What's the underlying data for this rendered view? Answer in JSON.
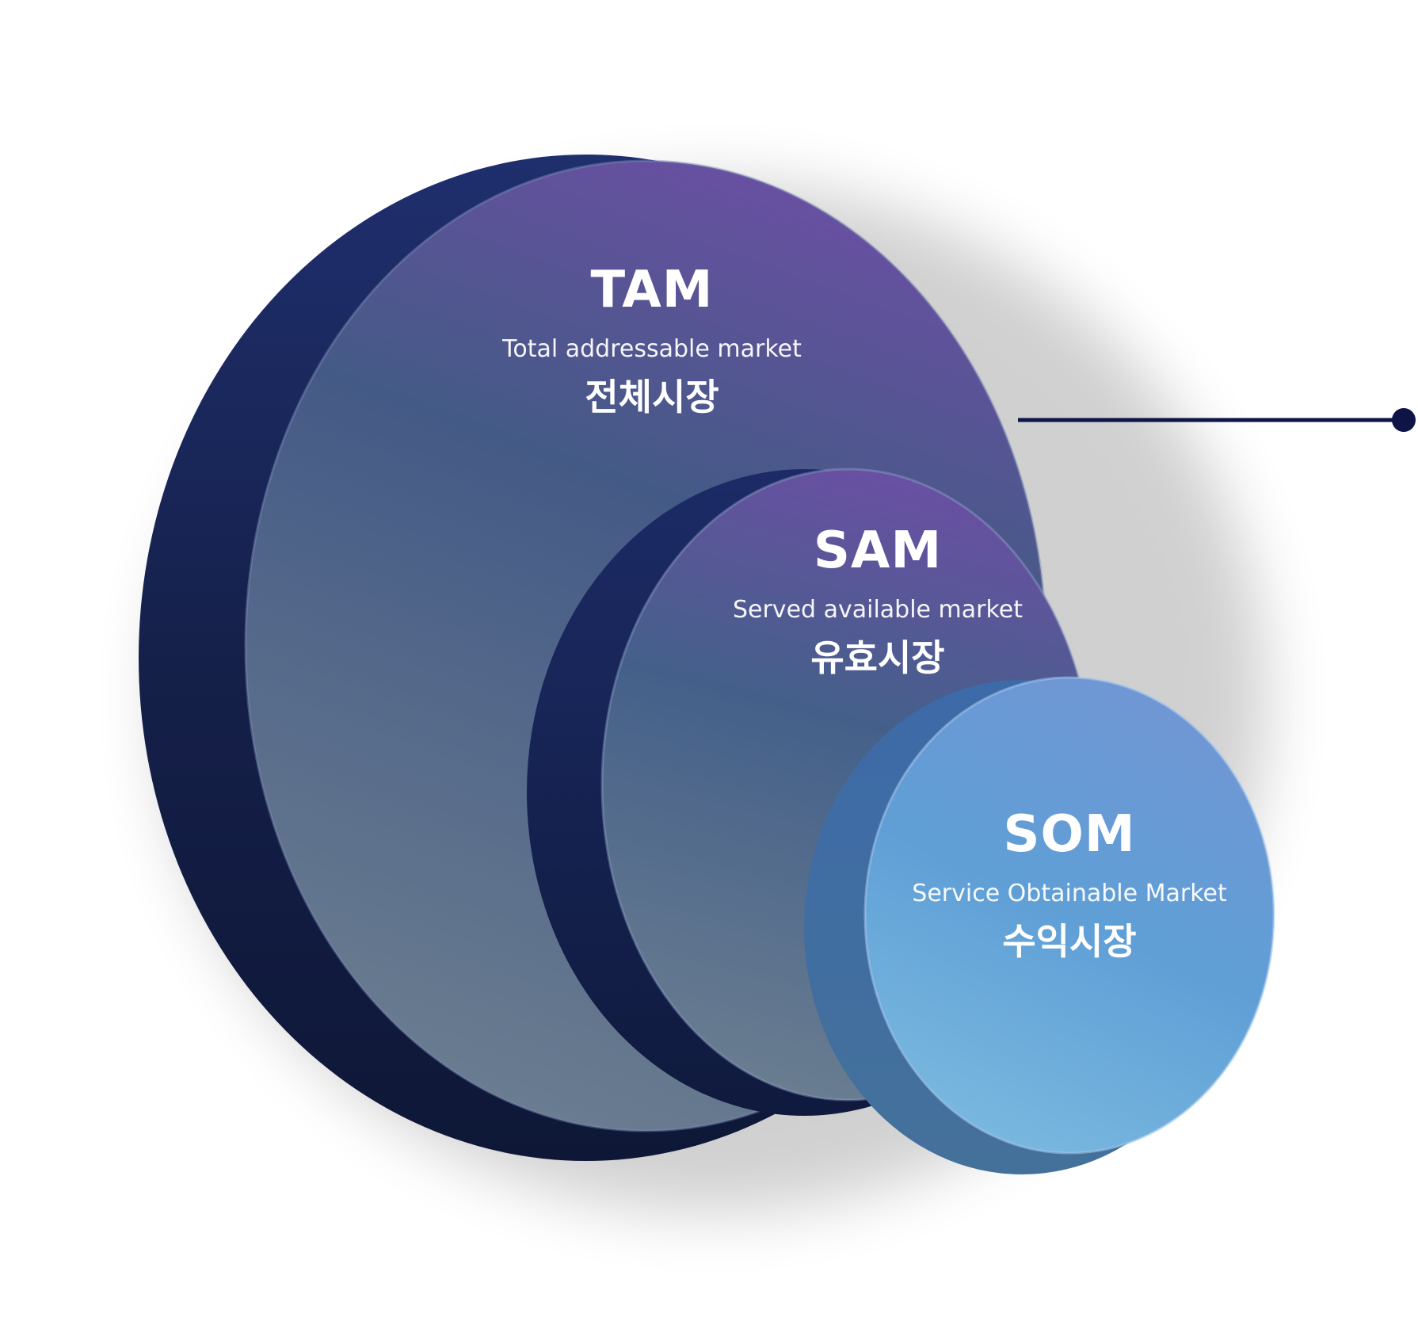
{
  "diagram": {
    "circles": [
      {
        "id": "tam",
        "abbr": "TAM",
        "full_name": "Total addressable market",
        "korean": "전체시장",
        "colors": {
          "top": "#5e4f9e",
          "bottom": "#6a7f92",
          "side": "#14203f"
        }
      },
      {
        "id": "sam",
        "abbr": "SAM",
        "full_name": "Served available market",
        "korean": "유효시장",
        "colors": {
          "top": "#5e4f9e",
          "bottom": "#6a7f92",
          "side": "#14203f"
        }
      },
      {
        "id": "som",
        "abbr": "SOM",
        "full_name": "Service Obtainable Market",
        "korean": "수익시장",
        "colors": {
          "top": "#6f8fd0",
          "bottom": "#7ab8de",
          "side": "#3f6c9a"
        }
      }
    ],
    "connector_color": "#0f1446"
  }
}
